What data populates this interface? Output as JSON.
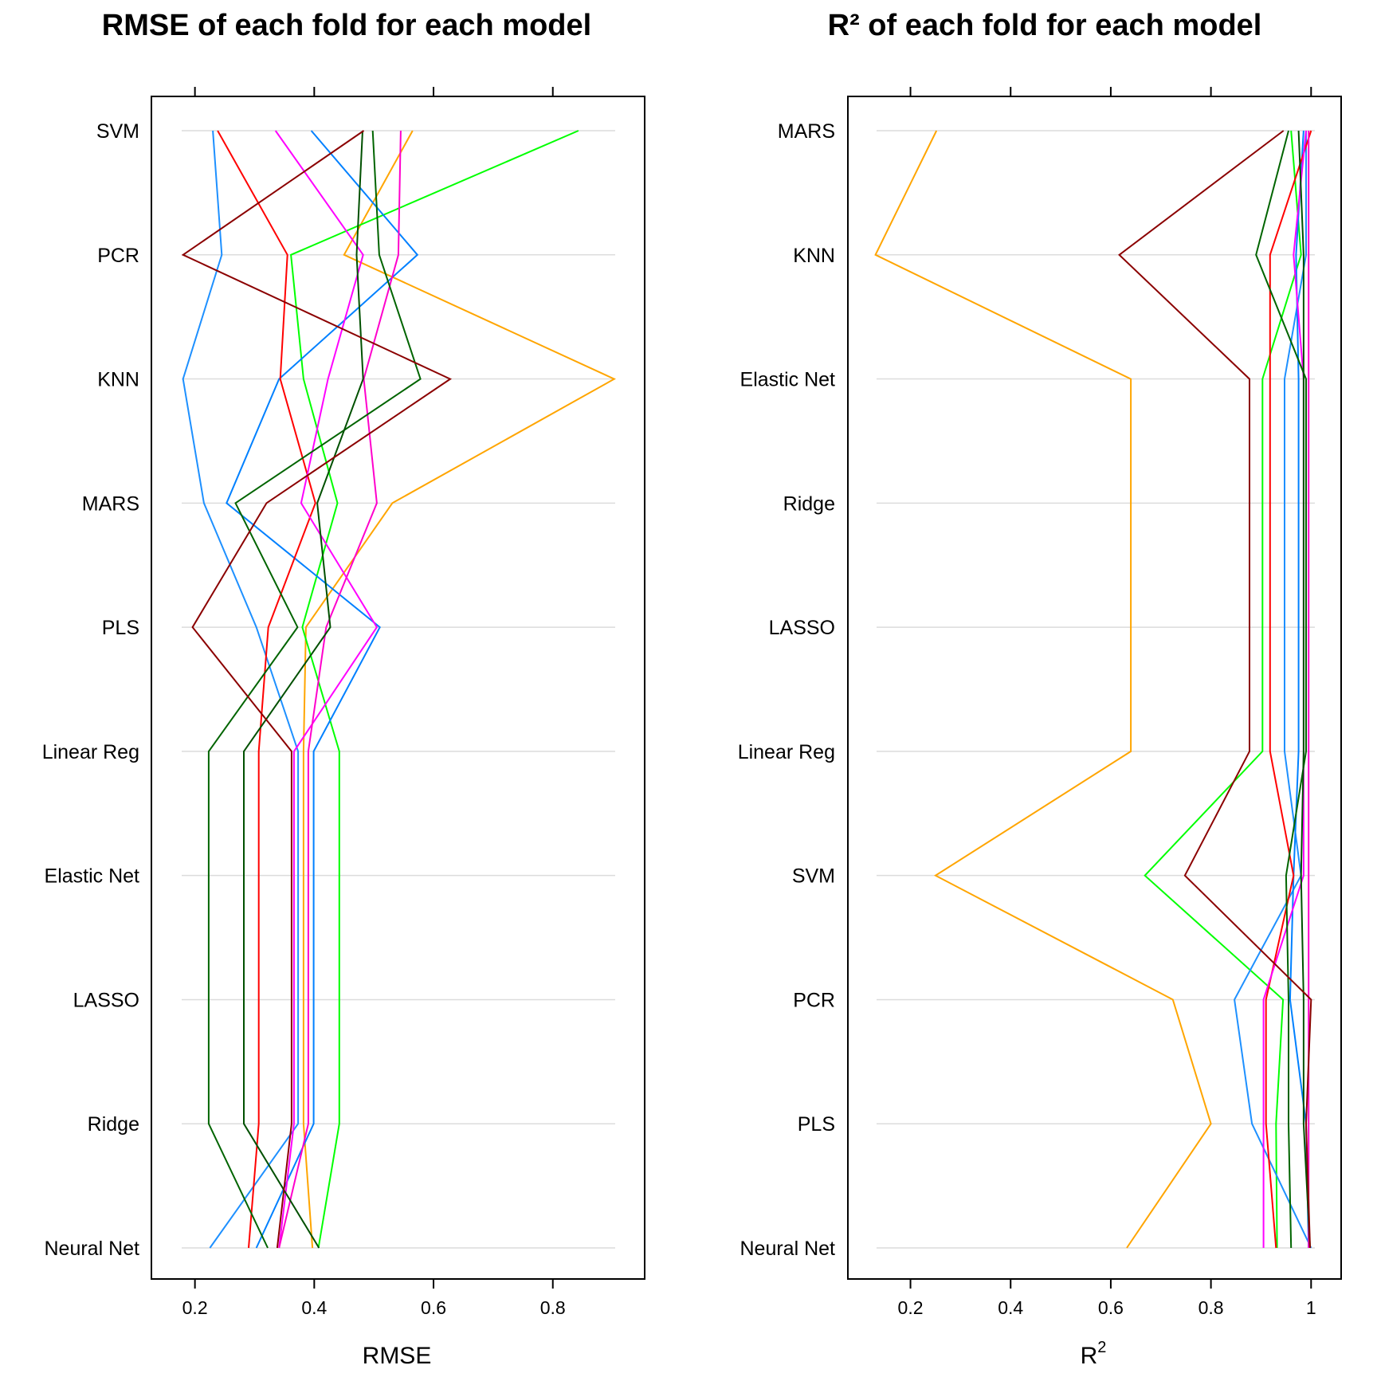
{
  "chart_data": [
    {
      "type": "line",
      "orientation": "parallel-coordinates",
      "title": "RMSE of each fold for each model",
      "xlabel": "RMSE",
      "xlabel_sup": "",
      "xlim": [
        0.127,
        0.954
      ],
      "xticks": [
        0.2,
        0.4,
        0.6,
        0.8
      ],
      "xtick_labels": [
        "0.2",
        "0.4",
        "0.6",
        "0.8"
      ],
      "categories": [
        "SVM",
        "PCR",
        "KNN",
        "MARS",
        "PLS",
        "Linear Reg",
        "Elastic Net",
        "LASSO",
        "Ridge",
        "Neural Net"
      ],
      "grid": true,
      "series": [
        {
          "color": "#FFA500",
          "values": [
            0.565,
            0.45,
            0.903,
            0.531,
            0.386,
            0.382,
            0.382,
            0.382,
            0.382,
            0.397
          ]
        },
        {
          "color": "#00FF00",
          "values": [
            0.843,
            0.361,
            0.382,
            0.439,
            0.38,
            0.442,
            0.442,
            0.442,
            0.442,
            0.407
          ]
        },
        {
          "color": "#1E90FF",
          "values": [
            0.23,
            0.245,
            0.18,
            0.215,
            0.303,
            0.373,
            0.373,
            0.373,
            0.373,
            0.225
          ]
        },
        {
          "color": "#0080FF",
          "values": [
            0.395,
            0.573,
            0.341,
            0.253,
            0.51,
            0.399,
            0.399,
            0.399,
            0.399,
            0.303
          ]
        },
        {
          "color": "#FF0000",
          "values": [
            0.238,
            0.355,
            0.343,
            0.402,
            0.323,
            0.307,
            0.307,
            0.307,
            0.307,
            0.29
          ]
        },
        {
          "color": "#FF00FF",
          "values": [
            0.335,
            0.482,
            0.423,
            0.378,
            0.505,
            0.366,
            0.366,
            0.366,
            0.366,
            0.341
          ]
        },
        {
          "color": "#FF00CC",
          "values": [
            0.545,
            0.541,
            0.483,
            0.505,
            0.42,
            0.39,
            0.39,
            0.39,
            0.39,
            0.341
          ]
        },
        {
          "color": "#006400",
          "values": [
            0.498,
            0.509,
            0.578,
            0.268,
            0.372,
            0.223,
            0.223,
            0.223,
            0.223,
            0.322
          ]
        },
        {
          "color": "#005000",
          "values": [
            0.481,
            0.471,
            0.482,
            0.405,
            0.427,
            0.282,
            0.282,
            0.282,
            0.282,
            0.408
          ]
        },
        {
          "color": "#8B0000",
          "values": [
            0.483,
            0.18,
            0.628,
            0.32,
            0.196,
            0.362,
            0.362,
            0.362,
            0.362,
            0.338
          ]
        }
      ]
    },
    {
      "type": "line",
      "orientation": "parallel-coordinates",
      "title": "R² of each fold for each model",
      "xlabel": "R",
      "xlabel_sup": "2",
      "xlim": [
        0.075,
        1.06
      ],
      "xticks": [
        0.2,
        0.4,
        0.6,
        0.8,
        1.0
      ],
      "xtick_labels": [
        "0.2",
        "0.4",
        "0.6",
        "0.8",
        "1"
      ],
      "categories": [
        "MARS",
        "KNN",
        "Elastic Net",
        "Ridge",
        "LASSO",
        "Linear Reg",
        "SVM",
        "PCR",
        "PLS",
        "Neural Net"
      ],
      "grid": true,
      "series": [
        {
          "color": "#FFA500",
          "values": [
            0.252,
            0.13,
            0.64,
            0.64,
            0.64,
            0.64,
            0.25,
            0.724,
            0.8,
            0.632
          ]
        },
        {
          "color": "#00FF00",
          "values": [
            0.96,
            0.98,
            0.903,
            0.903,
            0.903,
            0.903,
            0.668,
            0.944,
            0.93,
            0.932
          ]
        },
        {
          "color": "#1E90FF",
          "values": [
            0.99,
            0.99,
            0.947,
            0.947,
            0.947,
            0.947,
            0.98,
            0.847,
            0.882,
            1.0
          ]
        },
        {
          "color": "#0080FF",
          "values": [
            0.985,
            0.97,
            0.975,
            0.975,
            0.975,
            0.975,
            0.965,
            0.958,
            0.99,
            0.995
          ]
        },
        {
          "color": "#FF0000",
          "values": [
            1.0,
            0.918,
            0.918,
            0.918,
            0.918,
            0.918,
            0.965,
            0.91,
            0.91,
            0.93
          ]
        },
        {
          "color": "#FF00FF",
          "values": [
            0.99,
            0.965,
            0.985,
            0.985,
            0.985,
            0.985,
            0.985,
            0.905,
            0.905,
            0.905
          ]
        },
        {
          "color": "#FF00CC",
          "values": [
            0.995,
            0.995,
            0.995,
            0.995,
            0.995,
            0.995,
            0.995,
            0.995,
            0.995,
            0.995
          ]
        },
        {
          "color": "#006400",
          "values": [
            0.955,
            0.89,
            0.99,
            0.99,
            0.99,
            0.99,
            0.95,
            0.955,
            0.955,
            0.96
          ]
        },
        {
          "color": "#005000",
          "values": [
            0.975,
            0.985,
            0.985,
            0.985,
            0.985,
            0.985,
            0.98,
            0.985,
            0.985,
            0.998
          ]
        },
        {
          "color": "#8B0000",
          "values": [
            0.945,
            0.617,
            0.877,
            0.877,
            0.877,
            0.877,
            0.748,
            1.0,
            0.99,
            0.998
          ]
        }
      ]
    }
  ]
}
